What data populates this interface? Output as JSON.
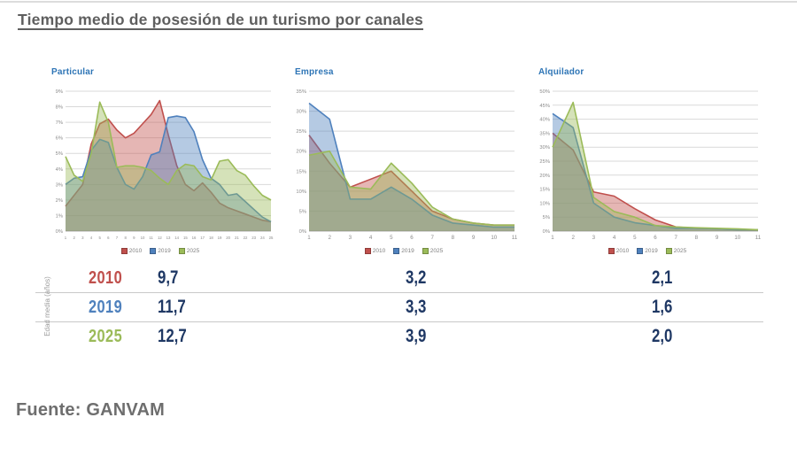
{
  "page": {
    "title": "Tiempo medio de posesión de un turismo por canales",
    "source": "Fuente: GANVAM"
  },
  "colors": {
    "red_2010": "#C0504D",
    "blue_2019": "#4F81BD",
    "green_2025": "#9BBB59",
    "table_value_navy": "#1F3864",
    "grid_gray": "#d9d9d9",
    "tick_gray": "#8a8a8a"
  },
  "chart_data": [
    {
      "type": "area",
      "title": "Particular",
      "x": [
        1,
        2,
        3,
        4,
        5,
        6,
        7,
        8,
        9,
        10,
        11,
        12,
        13,
        14,
        15,
        16,
        17,
        18,
        19,
        20,
        21,
        22,
        23,
        24,
        25
      ],
      "xlabel": "",
      "ylabel": "",
      "ylim": [
        0,
        9
      ],
      "ytick_step": 1,
      "ytick_suffix": "%",
      "grid": true,
      "legend_position": "bottom",
      "series": [
        {
          "name": "2010",
          "color": "#C0504D",
          "values": [
            1.6,
            2.3,
            3.0,
            5.6,
            6.9,
            7.2,
            6.5,
            6.0,
            6.3,
            6.9,
            7.5,
            8.4,
            6.2,
            4.2,
            3.0,
            2.6,
            3.1,
            2.5,
            1.8,
            1.5,
            1.3,
            1.1,
            0.9,
            0.7,
            0.6
          ]
        },
        {
          "name": "2019",
          "color": "#4F81BD",
          "values": [
            3.0,
            3.4,
            3.5,
            5.2,
            5.9,
            5.7,
            4.1,
            3.0,
            2.7,
            3.5,
            4.9,
            5.1,
            7.3,
            7.4,
            7.3,
            6.4,
            4.6,
            3.4,
            3.0,
            2.3,
            2.4,
            1.9,
            1.4,
            0.9,
            0.6
          ]
        },
        {
          "name": "2025",
          "color": "#9BBB59",
          "values": [
            4.8,
            3.6,
            3.2,
            5.0,
            8.3,
            7.0,
            4.1,
            4.2,
            4.2,
            4.1,
            3.9,
            3.4,
            3.0,
            3.9,
            4.3,
            4.2,
            3.5,
            3.3,
            4.5,
            4.6,
            3.9,
            3.6,
            2.9,
            2.3,
            2.0
          ]
        }
      ]
    },
    {
      "type": "area",
      "title": "Empresa",
      "x": [
        1,
        2,
        3,
        4,
        5,
        6,
        7,
        8,
        9,
        10,
        11
      ],
      "xlabel": "",
      "ylabel": "",
      "ylim": [
        0,
        35
      ],
      "ytick_step": 5,
      "ytick_suffix": "%",
      "grid": true,
      "legend_position": "bottom",
      "series": [
        {
          "name": "2010",
          "color": "#C0504D",
          "values": [
            24,
            17,
            11,
            13,
            15,
            10,
            5,
            3,
            2,
            1.5,
            1.5
          ]
        },
        {
          "name": "2019",
          "color": "#4F81BD",
          "values": [
            32,
            28,
            8,
            8,
            11,
            8,
            4,
            2,
            1.5,
            1,
            1
          ]
        },
        {
          "name": "2025",
          "color": "#9BBB59",
          "values": [
            19,
            20,
            11,
            10.5,
            17,
            12,
            6,
            3,
            2,
            1.5,
            1.5
          ]
        }
      ]
    },
    {
      "type": "area",
      "title": "Alquilador",
      "x": [
        1,
        2,
        3,
        4,
        5,
        6,
        7,
        8,
        9,
        10,
        11
      ],
      "xlabel": "",
      "ylabel": "",
      "ylim": [
        0,
        50
      ],
      "ytick_step": 5,
      "ytick_suffix": "%",
      "grid": true,
      "legend_position": "bottom",
      "series": [
        {
          "name": "2010",
          "color": "#C0504D",
          "values": [
            35,
            29,
            14,
            12.5,
            8,
            4,
            1.5,
            1,
            0.8,
            0.5,
            0.5
          ]
        },
        {
          "name": "2019",
          "color": "#4F81BD",
          "values": [
            42,
            37,
            10,
            5,
            3,
            2,
            1,
            1,
            0.8,
            0.5,
            0.5
          ]
        },
        {
          "name": "2025",
          "color": "#9BBB59",
          "values": [
            30,
            46,
            12,
            7,
            5,
            2,
            1.5,
            1.2,
            1,
            0.8,
            0.5
          ]
        }
      ]
    }
  ],
  "table": {
    "y_axis_label": "Edad media (años)",
    "columns": [
      "Particular",
      "Empresa",
      "Alquilador"
    ],
    "rows": [
      {
        "year": "2010",
        "color": "#C0504D",
        "values": [
          "9,7",
          "3,2",
          "2,1"
        ]
      },
      {
        "year": "2019",
        "color": "#4F81BD",
        "values": [
          "11,7",
          "3,3",
          "1,6"
        ]
      },
      {
        "year": "2025",
        "color": "#9BBB59",
        "values": [
          "12,7",
          "3,9",
          "2,0"
        ]
      }
    ]
  }
}
